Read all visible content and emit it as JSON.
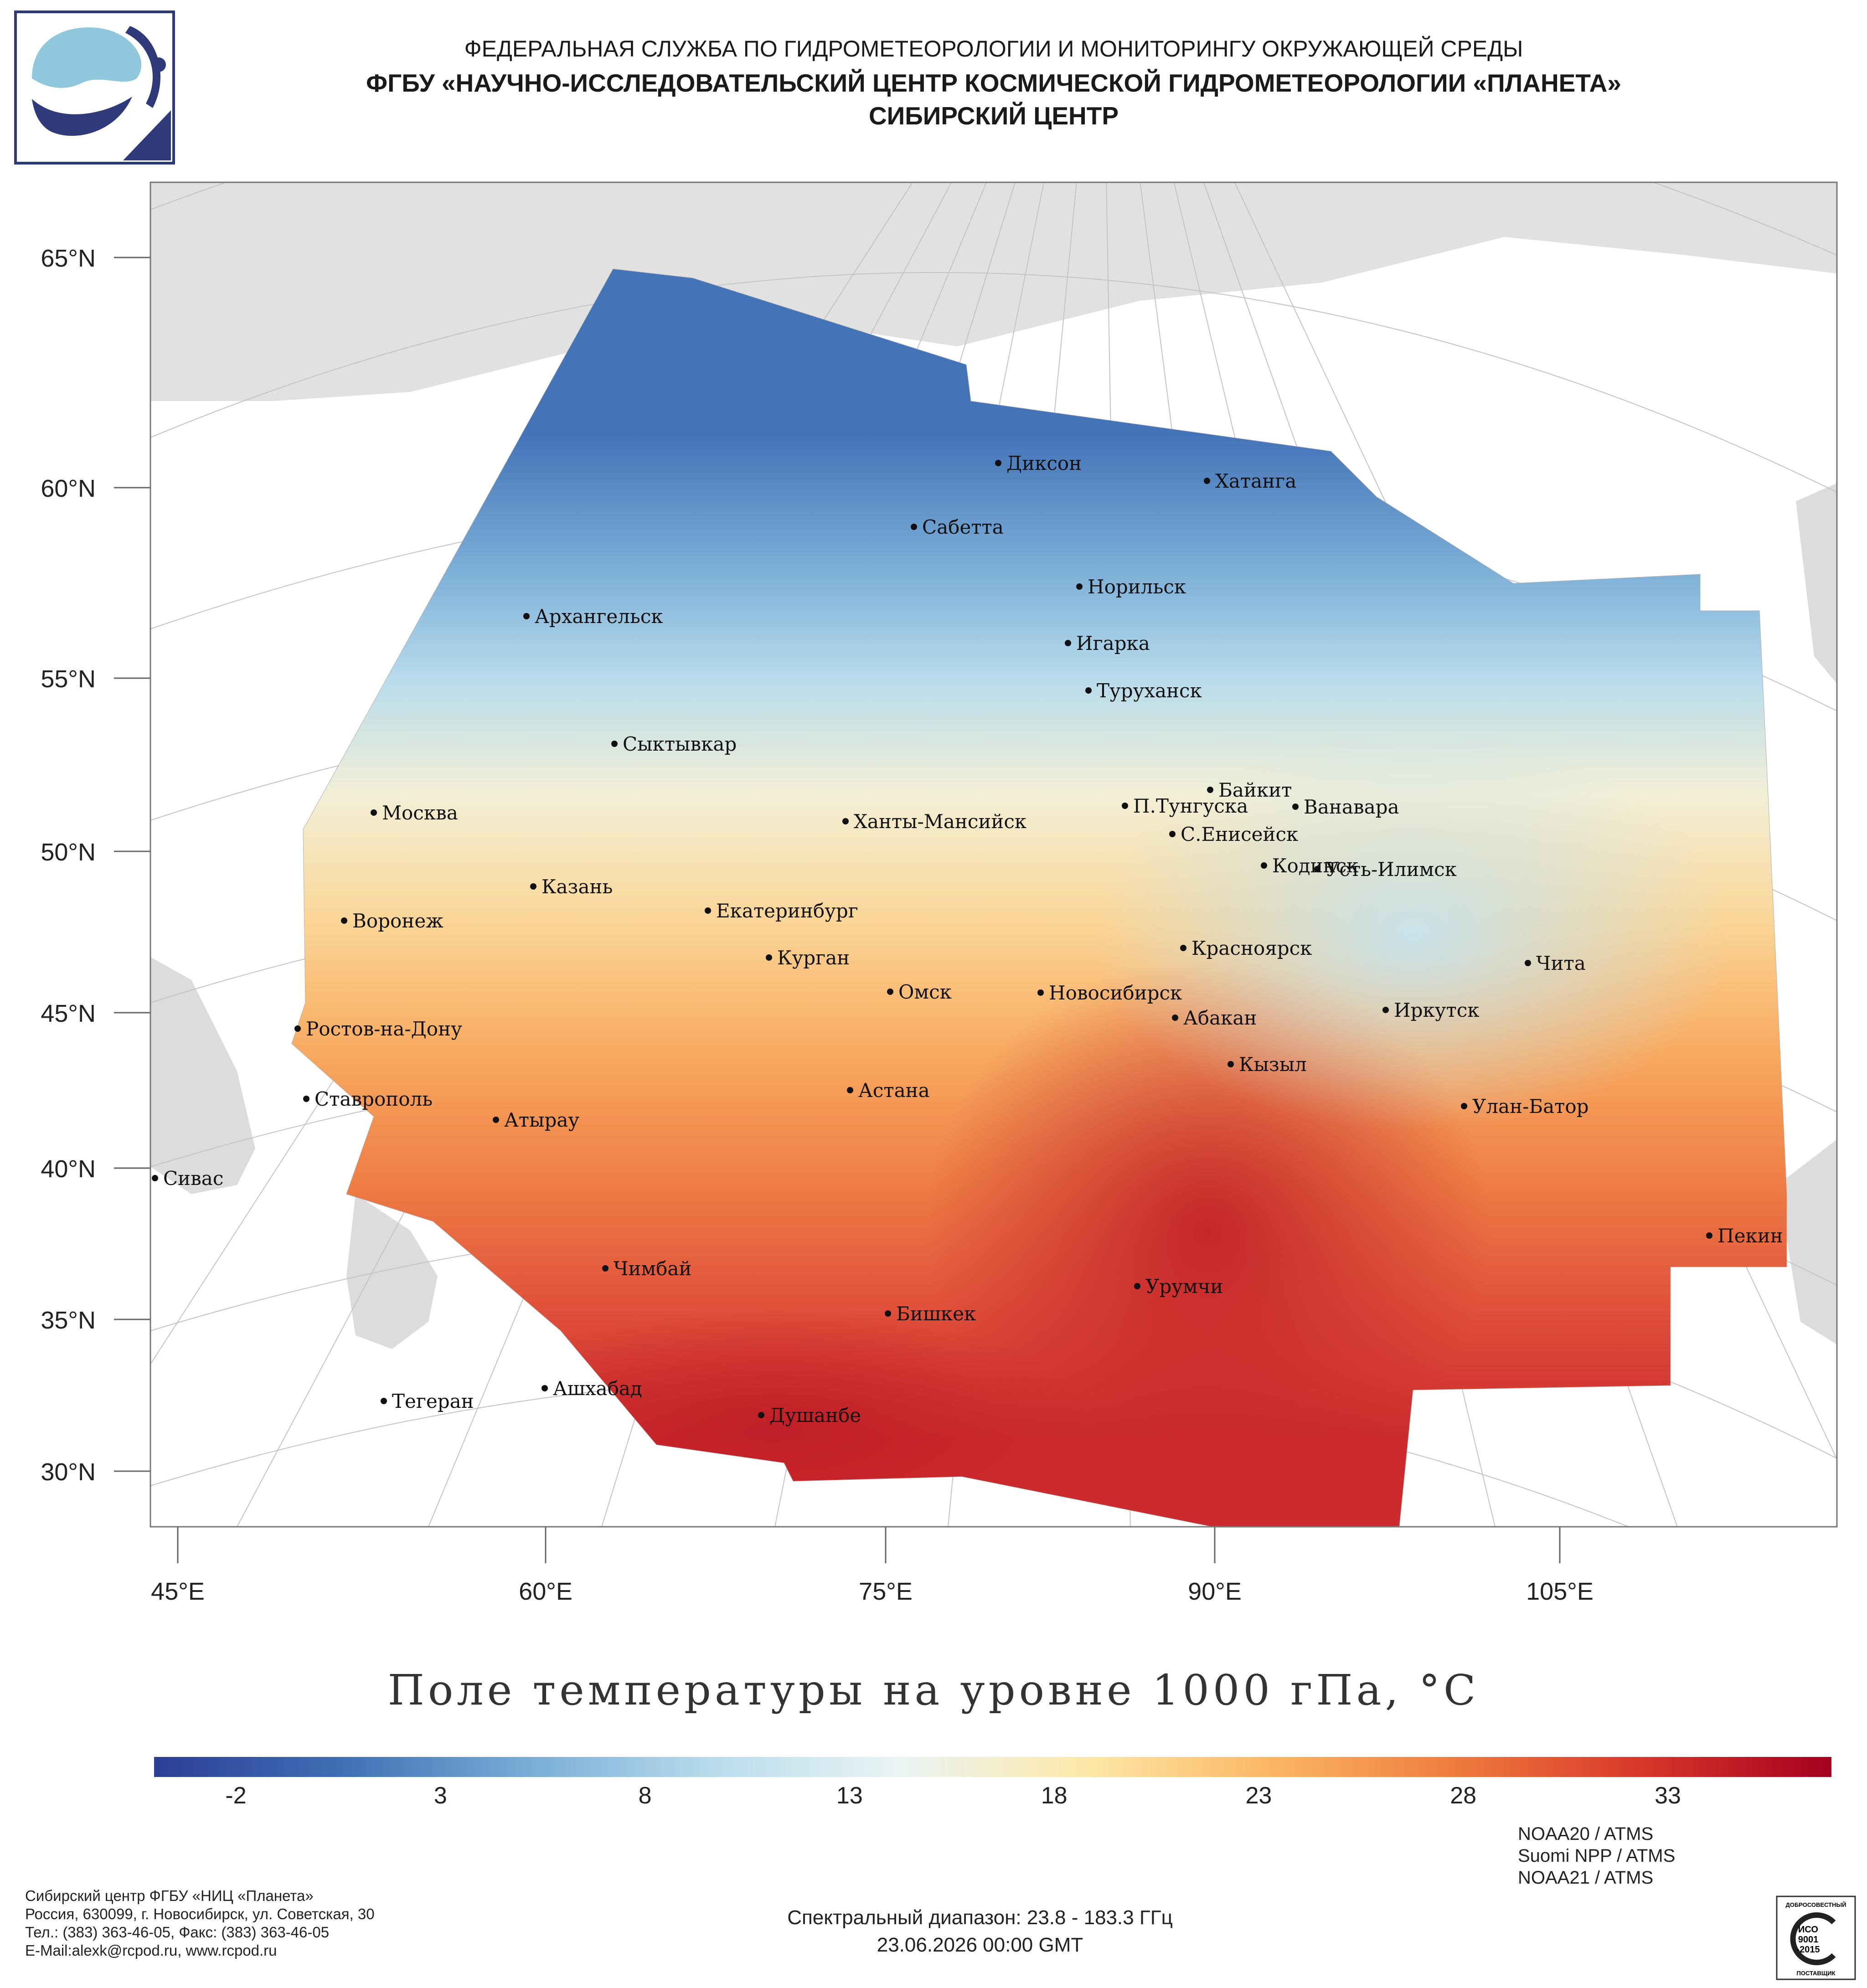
{
  "header": {
    "line1": "ФЕДЕРАЛЬНАЯ СЛУЖБА ПО ГИДРОМЕТЕОРОЛОГИИ И МОНИТОРИНГУ ОКРУЖАЮЩЕЙ СРЕДЫ",
    "line2": "ФГБУ «НАУЧНО-ИССЛЕДОВАТЕЛЬСКИЙ ЦЕНТР КОСМИЧЕСКОЙ ГИДРОМЕТЕОРОЛОГИИ «ПЛАНЕТА»",
    "line3": "СИБИРСКИЙ ЦЕНТР"
  },
  "map": {
    "lat_labels": [
      "65°N",
      "60°N",
      "55°N",
      "50°N",
      "45°N",
      "40°N",
      "35°N",
      "30°N"
    ],
    "lon_labels": [
      "45°E",
      "60°E",
      "75°E",
      "90°E",
      "105°E"
    ],
    "cities": [
      {
        "name": "Диксон",
        "lon": 80.5,
        "lat": 73.5
      },
      {
        "name": "Хатанга",
        "lon": 102.5,
        "lat": 72.0
      },
      {
        "name": "Сабетта",
        "lon": 72.1,
        "lat": 71.3
      },
      {
        "name": "Норильск",
        "lon": 88.2,
        "lat": 69.3
      },
      {
        "name": "Архангельск",
        "lon": 40.5,
        "lat": 64.5
      },
      {
        "name": "Игарка",
        "lon": 86.6,
        "lat": 67.5
      },
      {
        "name": "Туруханск",
        "lon": 87.9,
        "lat": 65.8
      },
      {
        "name": "Сыктывкар",
        "lon": 50.8,
        "lat": 61.7
      },
      {
        "name": "Москва",
        "lon": 37.6,
        "lat": 55.8
      },
      {
        "name": "Байкит",
        "lon": 96.4,
        "lat": 61.7
      },
      {
        "name": "П.Тунгуска",
        "lon": 93.0,
        "lat": 61.0
      },
      {
        "name": "Ванавара",
        "lon": 102.3,
        "lat": 60.3
      },
      {
        "name": "Ханты-Мансийск",
        "lon": 69.0,
        "lat": 61.0
      },
      {
        "name": "С.Енисейск",
        "lon": 92.1,
        "lat": 58.4
      },
      {
        "name": "Кодинск",
        "lon": 99.2,
        "lat": 58.6
      },
      {
        "name": "Усть-Илимск",
        "lon": 102.7,
        "lat": 58.0
      },
      {
        "name": "Казань",
        "lon": 49.1,
        "lat": 55.8
      },
      {
        "name": "Екатеринбург",
        "lon": 60.6,
        "lat": 56.8
      },
      {
        "name": "Воронеж",
        "lon": 39.2,
        "lat": 51.7
      },
      {
        "name": "Красноярск",
        "lon": 92.9,
        "lat": 56.0
      },
      {
        "name": "Курган",
        "lon": 65.3,
        "lat": 55.4
      },
      {
        "name": "Чита",
        "lon": 113.5,
        "lat": 52.0
      },
      {
        "name": "Омск",
        "lon": 73.4,
        "lat": 55.0
      },
      {
        "name": "Новосибирск",
        "lon": 82.9,
        "lat": 55.0
      },
      {
        "name": "Иркутск",
        "lon": 104.3,
        "lat": 52.3
      },
      {
        "name": "Ростов-на-Дону",
        "lon": 39.7,
        "lat": 47.2
      },
      {
        "name": "Абакан",
        "lon": 91.4,
        "lat": 53.7
      },
      {
        "name": "Кызыл",
        "lon": 94.4,
        "lat": 51.7
      },
      {
        "name": "Астана",
        "lon": 71.4,
        "lat": 51.2
      },
      {
        "name": "Ставрополь",
        "lon": 42.0,
        "lat": 45.0
      },
      {
        "name": "Улан-Батор",
        "lon": 106.9,
        "lat": 47.9
      },
      {
        "name": "Атырау",
        "lon": 51.9,
        "lat": 47.1
      },
      {
        "name": "Сивас",
        "lon": 37.0,
        "lat": 39.7
      },
      {
        "name": "Пекин",
        "lon": 116.4,
        "lat": 39.9
      },
      {
        "name": "Чимбай",
        "lon": 59.8,
        "lat": 42.9
      },
      {
        "name": "Урумчи",
        "lon": 87.6,
        "lat": 43.8
      },
      {
        "name": "Бишкек",
        "lon": 74.6,
        "lat": 42.9
      },
      {
        "name": "Ашхабад",
        "lon": 58.4,
        "lat": 37.9
      },
      {
        "name": "Тегеран",
        "lon": 51.4,
        "lat": 35.7
      },
      {
        "name": "Душанбе",
        "lon": 68.8,
        "lat": 38.6
      }
    ]
  },
  "legend": {
    "title": "Поле температуры на уровне 1000 гПа, °C",
    "min": -4,
    "max": 37,
    "ticks": [
      "-2",
      "3",
      "8",
      "13",
      "18",
      "23",
      "28",
      "33"
    ],
    "stops": [
      "#2c3e96",
      "#3f6fb4",
      "#79acd6",
      "#b8dcec",
      "#eaf4f4",
      "#fde8a8",
      "#fbb663",
      "#ef7a3d",
      "#d8352a",
      "#a5001f"
    ]
  },
  "footer": {
    "org_lines": [
      "Сибирский центр ФГБУ «НИЦ «Планета»",
      "Россия, 630099, г. Новосибирск, ул. Советская, 30",
      "Тел.: (383) 363-46-05, Факс: (383) 363-46-05",
      "E-Mail:alexk@rcpod.ru, www.rcpod.ru"
    ],
    "spectral": "Спектральный диапазон: 23.8 - 183.3 ГГц",
    "datetime": "23.06.2026 00:00 GMT",
    "satellites": [
      "NOAA20 / ATMS",
      "Suomi NPP / ATMS",
      "NOAA21 / ATMS"
    ],
    "iso_badge": {
      "top": "ДОБРОСОВЕСТНЫЙ",
      "mid1": "ИСО",
      "mid2": "9001",
      "mid3": "-2015",
      "bottom": "ПОСТАВЩИК"
    }
  }
}
